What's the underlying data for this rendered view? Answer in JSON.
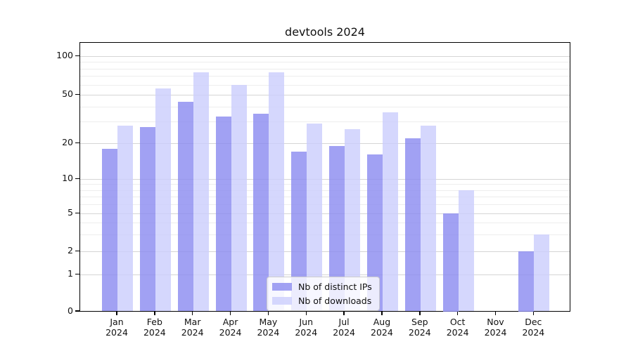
{
  "title": "devtools 2024",
  "colors": {
    "ips_bar": "#8989f0",
    "downloads_bar": "#cbcdfc",
    "grid_major": "#d5d5d5",
    "grid_minor": "#ededed",
    "axis": "#000000"
  },
  "legend": {
    "items": [
      {
        "label": "Nb of distinct IPs",
        "series": "ips"
      },
      {
        "label": "Nb of downloads",
        "series": "downloads"
      }
    ]
  },
  "y_axis": {
    "scale": "symlog",
    "tick_labels": [
      "100",
      "50",
      "20",
      "10",
      "5",
      "2",
      "1",
      "0"
    ],
    "tick_values": [
      100,
      50,
      20,
      10,
      5,
      2,
      1,
      0
    ],
    "minor_values": [
      3,
      4,
      6,
      7,
      8,
      9,
      30,
      40,
      60,
      70,
      80,
      90
    ]
  },
  "x_axis": {
    "categories": [
      {
        "month": "Jan",
        "year": "2024"
      },
      {
        "month": "Feb",
        "year": "2024"
      },
      {
        "month": "Mar",
        "year": "2024"
      },
      {
        "month": "Apr",
        "year": "2024"
      },
      {
        "month": "May",
        "year": "2024"
      },
      {
        "month": "Jun",
        "year": "2024"
      },
      {
        "month": "Jul",
        "year": "2024"
      },
      {
        "month": "Aug",
        "year": "2024"
      },
      {
        "month": "Sep",
        "year": "2024"
      },
      {
        "month": "Oct",
        "year": "2024"
      },
      {
        "month": "Nov",
        "year": "2024"
      },
      {
        "month": "Dec",
        "year": "2024"
      }
    ]
  },
  "chart_data": {
    "type": "bar",
    "title": "devtools 2024",
    "categories": [
      "Jan 2024",
      "Feb 2024",
      "Mar 2024",
      "Apr 2024",
      "May 2024",
      "Jun 2024",
      "Jul 2024",
      "Aug 2024",
      "Sep 2024",
      "Oct 2024",
      "Nov 2024",
      "Dec 2024"
    ],
    "series": [
      {
        "name": "Nb of distinct IPs",
        "values": [
          18,
          27,
          44,
          33,
          35,
          17,
          19,
          16,
          22,
          5,
          0,
          2
        ]
      },
      {
        "name": "Nb of downloads",
        "values": [
          28,
          56,
          75,
          60,
          75,
          29,
          26,
          36,
          28,
          8,
          0,
          3
        ]
      }
    ],
    "xlabel": "",
    "ylabel": "",
    "yscale": "symlog",
    "yticks": [
      0,
      1,
      2,
      5,
      10,
      20,
      50,
      100
    ],
    "ylim": [
      0,
      127
    ],
    "grid": true,
    "legend_position": "lower center"
  }
}
